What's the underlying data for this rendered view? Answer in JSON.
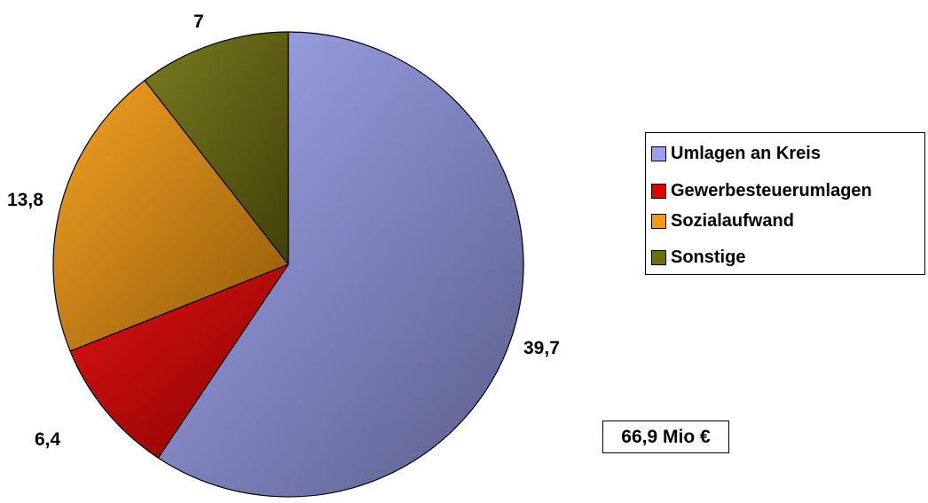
{
  "chart_data": {
    "type": "pie",
    "series": [
      {
        "name": "Umlagen an Kreis",
        "value": 39.7,
        "label": "39,7",
        "color": "#9aa0ee"
      },
      {
        "name": "Gewerbesteuerumlagen",
        "value": 6.4,
        "label": "6,4",
        "color": "#e00000"
      },
      {
        "name": "Sozialaufwand",
        "value": 13.8,
        "label": "13,8",
        "color": "#f59a10"
      },
      {
        "name": "Sonstige",
        "value": 7,
        "label": "7",
        "color": "#6e700e"
      }
    ],
    "total_label": "66,9 Mio €",
    "legend_position": "right"
  }
}
